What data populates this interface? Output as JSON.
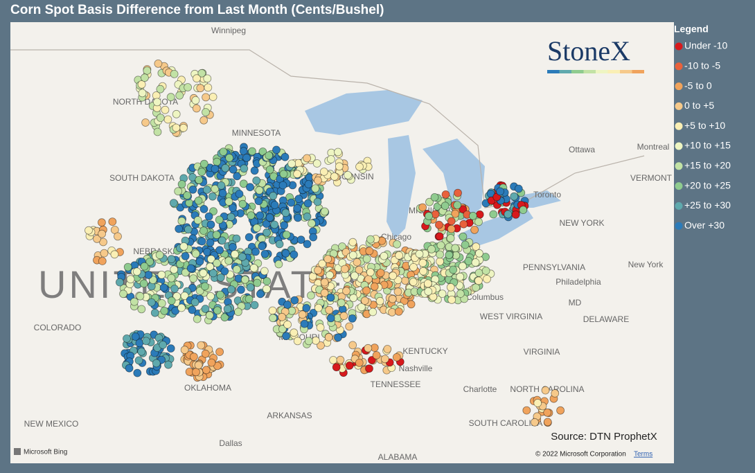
{
  "header": {
    "title": "Corn Spot Basis Difference from Last Month (Cents/Bushel)"
  },
  "legend": {
    "title": "Legend",
    "items": [
      {
        "label": "Under -10",
        "color": "#d7191c"
      },
      {
        "label": "-10 to -5",
        "color": "#e8613c"
      },
      {
        "label": "-5 to 0",
        "color": "#f0a35c"
      },
      {
        "label": "0 to +5",
        "color": "#f6c98a"
      },
      {
        "label": "+5 to +10",
        "color": "#faefb4"
      },
      {
        "label": "+10 to +15",
        "color": "#eef5c2"
      },
      {
        "label": "+15 to +20",
        "color": "#c2e2a5"
      },
      {
        "label": "+20 to +25",
        "color": "#8fcb8f"
      },
      {
        "label": "+25 to +30",
        "color": "#5fa9ad"
      },
      {
        "label": "Over +30",
        "color": "#2b7bb9"
      }
    ]
  },
  "logo": "StoneX",
  "map": {
    "watermark": "UNITED STATES",
    "places": [
      "Winnipeg",
      "NORTH DAKOTA",
      "MINNESOTA",
      "SOUTH DAKOTA",
      "WISCONSIN",
      "MICHIGAN",
      "Ottawa",
      "Montreal",
      "VERMONT",
      "Toronto",
      "NEW YORK",
      "Chicago",
      "NEBRASKA",
      "PENNSYLVANIA",
      "New York",
      "Philadelphia",
      "Columbus",
      "MD",
      "WEST VIRGINIA",
      "DELAWARE",
      "COLORADO",
      "MISSOURI",
      "KENTUCKY",
      "VIRGINIA",
      "Nashville",
      "TENNESSEE",
      "Charlotte",
      "NORTH CAROLINA",
      "OKLAHOMA",
      "ARKANSAS",
      "NEW MEXICO",
      "SOUTH CAROLINA",
      "Dallas",
      "ALABAMA"
    ]
  },
  "source": "Source: DTN ProphetX",
  "copyright": "© 2022 Microsoft Corporation",
  "terms": "Terms",
  "bing": "Microsoft Bing"
}
